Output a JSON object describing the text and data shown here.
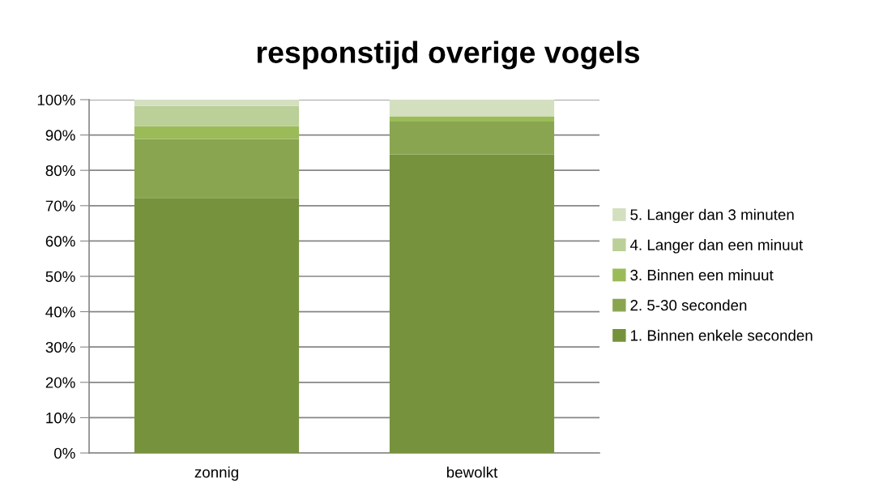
{
  "chart_data": {
    "type": "bar",
    "title": "responstijd overige vogels",
    "categories": [
      "zonnig",
      "bewolkt"
    ],
    "stacked": true,
    "series": [
      {
        "name": "1. Binnen enkele seconden",
        "color": "#76923c",
        "values": [
          72.2,
          84.5
        ]
      },
      {
        "name": "2. 5-30 seconden",
        "color": "#8aa54f",
        "values": [
          16.7,
          9.3
        ]
      },
      {
        "name": "3. Binnen een minuut",
        "color": "#9bbb59",
        "values": [
          3.6,
          1.5
        ]
      },
      {
        "name": "4. Langer dan een minuut",
        "color": "#bbcf98",
        "values": [
          5.7,
          null
        ]
      },
      {
        "name": "5. Langer dan 3 minuten",
        "color": "#d3dfbf",
        "values": [
          1.8,
          4.7
        ]
      }
    ],
    "ylim": [
      0,
      100
    ],
    "yticks": [
      {
        "value": 0,
        "label": "0%"
      },
      {
        "value": 10,
        "label": "10%"
      },
      {
        "value": 20,
        "label": "20%"
      },
      {
        "value": 30,
        "label": "30%"
      },
      {
        "value": 40,
        "label": "40%"
      },
      {
        "value": 50,
        "label": "50%"
      },
      {
        "value": 60,
        "label": "60%"
      },
      {
        "value": 70,
        "label": "70%"
      },
      {
        "value": 80,
        "label": "80%"
      },
      {
        "value": 90,
        "label": "90%"
      },
      {
        "value": 100,
        "label": "100%"
      }
    ],
    "grid": "y",
    "legend": "right"
  }
}
